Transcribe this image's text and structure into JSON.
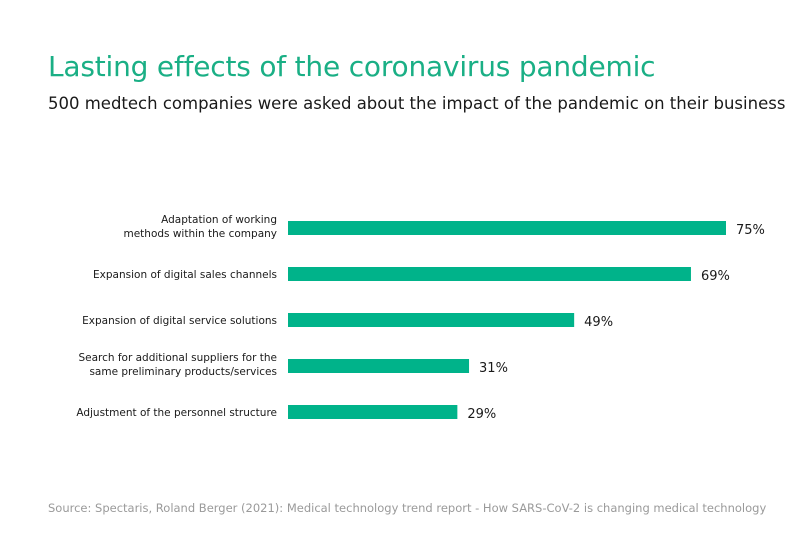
{
  "title": "Lasting effects of the coronavirus pandemic",
  "subtitle": "500 medtech companies were asked about the impact of the pandemic on their business",
  "source": "Source: Spectaris, Roland Berger (2021): Medical technology trend report - How SARS-CoV-2 is changing medical technology",
  "colors": {
    "bar": "#00b38a",
    "title": "#1aaf85",
    "label": "#1a1a1a",
    "source": "#9a9a9a"
  },
  "chart_data": {
    "type": "bar",
    "orientation": "horizontal",
    "categories": [
      [
        "Adaptation of working",
        "methods within the company"
      ],
      [
        "Expansion of digital sales channels"
      ],
      [
        "Expansion of digital service solutions"
      ],
      [
        "Search for additional suppliers for the",
        "same preliminary products/services"
      ],
      [
        "Adjustment of the personnel structure"
      ]
    ],
    "values": [
      75,
      69,
      49,
      31,
      29
    ],
    "value_labels": [
      "75%",
      "69%",
      "49%",
      "31%",
      "29%"
    ],
    "unit": "%",
    "xlim": [
      0,
      100
    ],
    "grid": false,
    "legend": "none"
  }
}
